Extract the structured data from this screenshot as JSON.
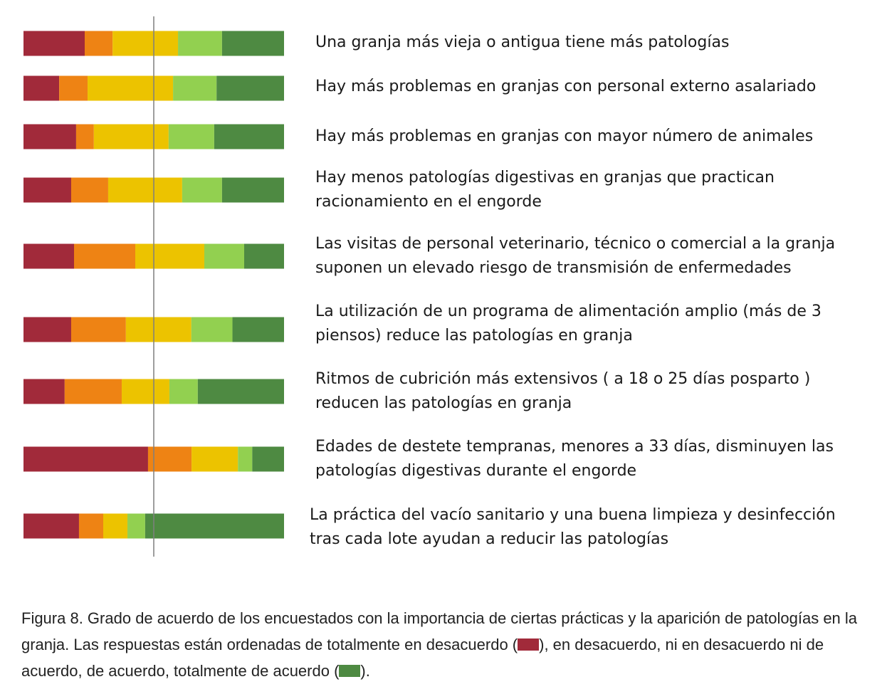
{
  "colors": {
    "totally_disagree": "#A12A3A",
    "disagree": "#EE8314",
    "neutral": "#ECC300",
    "agree": "#92D050",
    "totally_agree": "#4E8A42",
    "center_line": "#7f7f7f"
  },
  "chart_data": {
    "type": "bar",
    "orientation": "horizontal",
    "stacked": true,
    "normalized": true,
    "categories": [
      "Una granja más vieja o antigua tiene más patologías",
      "Hay más problemas en granjas con personal externo asalariado",
      "Hay más problemas en granjas con mayor número de animales",
      "Hay menos patologías digestivas en granjas que practican\nracionamiento en el engorde",
      "Las visitas de personal veterinario, técnico o comercial a la granja\nsuponen un elevado riesgo de transmisión de enfermedades",
      "La utilización de un programa de alimentación amplio (más de 3\npiensos) reduce las patologías en granja",
      "Ritmos de cubrición más extensivos ( a 18 o 25 días posparto )\nreducen las patologías en granja",
      "Edades de destete tempranas, menores a 33 días, disminuyen las\npatologías digestivas durante el engorde",
      "La práctica del vacío sanitario y una buena limpieza y desinfección\ntras cada lote ayudan a reducir las patologías"
    ],
    "series": [
      {
        "key": "totally_disagree",
        "values": [
          23.5,
          13.7,
          20.2,
          18.3,
          19.4,
          18.3,
          15.8,
          47.8,
          21.3
        ]
      },
      {
        "key": "disagree",
        "values": [
          10.7,
          10.9,
          6.8,
          14.2,
          23.5,
          21.0,
          21.9,
          16.7,
          9.3
        ]
      },
      {
        "key": "neutral",
        "values": [
          25.1,
          32.8,
          28.7,
          28.4,
          26.5,
          25.1,
          18.3,
          17.8,
          9.3
        ]
      },
      {
        "key": "agree",
        "values": [
          16.9,
          16.7,
          17.5,
          15.3,
          15.3,
          15.8,
          10.9,
          5.5,
          6.8
        ]
      },
      {
        "key": "totally_agree",
        "values": [
          23.8,
          25.9,
          26.8,
          23.8,
          15.3,
          19.8,
          33.1,
          12.2,
          53.3
        ]
      }
    ],
    "xlim": [
      0,
      100
    ],
    "reference_line": 50
  },
  "caption": {
    "part1": "Figura 8. Grado de acuerdo de los encuestados con la importancia de ciertas prácticas y la aparición de patologías en la granja. Las respuestas están ordenadas de totalmente en desacuerdo (",
    "part2": "), en desacuerdo, ni en desacuerdo ni de acuerdo, de acuerdo, totalmente de acuerdo (",
    "part3": ")."
  }
}
